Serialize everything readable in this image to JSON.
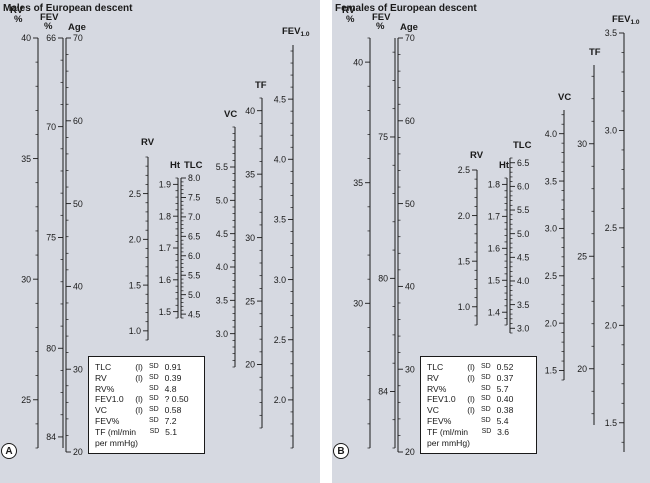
{
  "panels": [
    {
      "key": "A",
      "title": "Males of European descent",
      "badge": "A",
      "scales": [
        {
          "name": "RV %",
          "label": "RV\n%",
          "start": 40,
          "end": 23,
          "majors": [
            40,
            35,
            30,
            25
          ],
          "minorStep": 1
        },
        {
          "name": "FEV %",
          "label": "FEV\n%",
          "start": 66,
          "end": 84.5,
          "majors": [
            66,
            70,
            75,
            80,
            84
          ],
          "minorStep": 1
        },
        {
          "name": "Age",
          "label": "Age",
          "start": 70,
          "end": 20,
          "majors": [
            70,
            60,
            50,
            40,
            30,
            20
          ],
          "minorStep": 2
        },
        {
          "name": "RV",
          "label": "RV",
          "start": 2.9,
          "end": 0.9,
          "majors": [
            2.5,
            2.0,
            1.5,
            1.0
          ],
          "minorStep": 0.1
        },
        {
          "name": "Ht",
          "label": "Ht",
          "start": 1.92,
          "end": 1.48,
          "majors": [
            1.9,
            1.8,
            1.7,
            1.6,
            1.5
          ],
          "minorStep": 0.02
        },
        {
          "name": "TLC",
          "label": "TLC",
          "start": 8.0,
          "end": 4.4,
          "majors": [
            8.0,
            7.5,
            7.0,
            6.5,
            6.0,
            5.5,
            5.0,
            4.5
          ],
          "minorStep": 0.1
        },
        {
          "name": "VC",
          "label": "VC",
          "start": 6.1,
          "end": 2.5,
          "majors": [
            5.5,
            5.0,
            4.5,
            4.0,
            3.5,
            3.0
          ],
          "minorStep": 0.1
        },
        {
          "name": "TF",
          "label": "TF",
          "start": 41,
          "end": 15,
          "majors": [
            40,
            35,
            30,
            25,
            20
          ],
          "minorStep": 1
        },
        {
          "name": "FEV1.0",
          "label": "FEV",
          "sub": "1.0",
          "start": 4.95,
          "end": 1.6,
          "majors": [
            4.5,
            4.0,
            3.5,
            3.0,
            2.5,
            2.0
          ],
          "minorStep": 0.1
        }
      ],
      "legend": [
        {
          "name": "TLC",
          "ind": "(l)",
          "sd": "SD",
          "value": "0.91"
        },
        {
          "name": "RV",
          "ind": "(l)",
          "sd": "SD",
          "value": "0.39"
        },
        {
          "name": "RV%",
          "ind": "",
          "sd": "SD",
          "value": "4.8"
        },
        {
          "name": "FEV1.0",
          "ind": "(l)",
          "sd": "SD",
          "value": "? 0.50"
        },
        {
          "name": "VC",
          "ind": "(l)",
          "sd": "SD",
          "value": "0.58"
        },
        {
          "name": "FEV%",
          "ind": "",
          "sd": "SD",
          "value": "7.2"
        },
        {
          "name": "TF (ml/min",
          "ind": "",
          "sd": "SD",
          "value": "5.1"
        },
        {
          "name": "per mmHg)",
          "ind": "",
          "sd": "",
          "value": ""
        }
      ]
    },
    {
      "key": "B",
      "title": "Females of European descent",
      "badge": "B",
      "scales": [
        {
          "name": "RV %",
          "label": "RV\n%",
          "start": 41,
          "end": 24,
          "majors": [
            40,
            35,
            30
          ],
          "minorStep": 1
        },
        {
          "name": "FEV %",
          "label": "FEV\n%",
          "start": 71.5,
          "end": 86,
          "majors": [
            75,
            80,
            84
          ],
          "minorStep": 1
        },
        {
          "name": "Age",
          "label": "Age",
          "start": 70,
          "end": 20,
          "majors": [
            70,
            60,
            50,
            40,
            30,
            20
          ],
          "minorStep": 2
        },
        {
          "name": "RV",
          "label": "RV",
          "start": 2.5,
          "end": 0.8,
          "majors": [
            2.5,
            2.0,
            1.5,
            1.0
          ],
          "minorStep": 0.1
        },
        {
          "name": "Ht",
          "label": "Ht",
          "start": 1.82,
          "end": 1.36,
          "majors": [
            1.8,
            1.7,
            1.6,
            1.5,
            1.4
          ],
          "minorStep": 0.02
        },
        {
          "name": "TLC",
          "label": "TLC",
          "start": 6.6,
          "end": 2.9,
          "majors": [
            6.5,
            6.0,
            5.5,
            5.0,
            4.5,
            4.0,
            3.5,
            3.0
          ],
          "minorStep": 0.1
        },
        {
          "name": "VC",
          "label": "VC",
          "start": 4.25,
          "end": 1.4,
          "majors": [
            4.0,
            3.5,
            3.0,
            2.5,
            2.0,
            1.5
          ],
          "minorStep": 0.1
        },
        {
          "name": "TF",
          "label": "TF",
          "start": 33.5,
          "end": 17.5,
          "majors": [
            30,
            25,
            20
          ],
          "minorStep": 1
        },
        {
          "name": "FEV1.0",
          "label": "FEV",
          "sub": "1.0",
          "start": 3.5,
          "end": 1.35,
          "majors": [
            3.5,
            3.0,
            2.5,
            2.0,
            1.5
          ],
          "minorStep": 0.1
        }
      ],
      "legend": [
        {
          "name": "TLC",
          "ind": "(l)",
          "sd": "SD",
          "value": "0.52"
        },
        {
          "name": "RV",
          "ind": "(l)",
          "sd": "SD",
          "value": "0.37"
        },
        {
          "name": "RV%",
          "ind": "",
          "sd": "SD",
          "value": "5.7"
        },
        {
          "name": "FEV1.0",
          "ind": "(l)",
          "sd": "SD",
          "value": "0.40"
        },
        {
          "name": "VC",
          "ind": "(l)",
          "sd": "SD",
          "value": "0.38"
        },
        {
          "name": "FEV%",
          "ind": "",
          "sd": "SD",
          "value": "5.4"
        },
        {
          "name": "TF (ml/min",
          "ind": "",
          "sd": "SD",
          "value": "3.6"
        },
        {
          "name": "per mmHg)",
          "ind": "",
          "sd": "",
          "value": ""
        }
      ]
    }
  ]
}
